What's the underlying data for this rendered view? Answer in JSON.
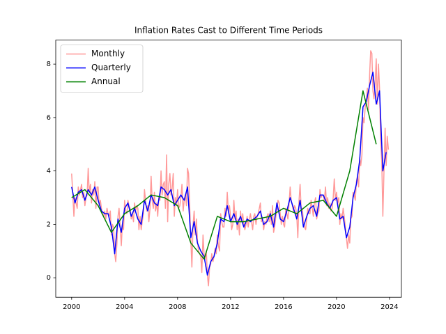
{
  "chart_data": {
    "type": "line",
    "title": "Inflation Rates Cast to Different Time Periods",
    "xlim": [
      1998.8,
      2024.9
    ],
    "xticks": [
      2000,
      2004,
      2008,
      2012,
      2016,
      2020,
      2024
    ],
    "ylim": [
      -0.73,
      8.9
    ],
    "yticks": [
      0,
      2,
      4,
      6,
      8
    ],
    "legend": "upper left",
    "series": [
      {
        "name": "Monthly",
        "color": "#ff9999",
        "x": [
          2000,
          2000.08,
          2000.17,
          2000.25,
          2000.33,
          2000.42,
          2000.5,
          2000.58,
          2000.67,
          2000.75,
          2000.83,
          2000.92,
          2001,
          2001.08,
          2001.17,
          2001.25,
          2001.33,
          2001.42,
          2001.5,
          2001.58,
          2001.67,
          2001.75,
          2001.83,
          2001.92,
          2002,
          2002.08,
          2002.17,
          2002.25,
          2002.33,
          2002.42,
          2002.5,
          2002.58,
          2002.67,
          2002.75,
          2002.83,
          2002.92,
          2003,
          2003.08,
          2003.17,
          2003.25,
          2003.33,
          2003.42,
          2003.5,
          2003.58,
          2003.67,
          2003.75,
          2003.83,
          2003.92,
          2004,
          2004.08,
          2004.17,
          2004.25,
          2004.33,
          2004.42,
          2004.5,
          2004.58,
          2004.67,
          2004.75,
          2004.83,
          2004.92,
          2005,
          2005.08,
          2005.17,
          2005.25,
          2005.33,
          2005.42,
          2005.5,
          2005.58,
          2005.67,
          2005.75,
          2005.83,
          2005.92,
          2006,
          2006.08,
          2006.17,
          2006.25,
          2006.33,
          2006.42,
          2006.5,
          2006.58,
          2006.67,
          2006.75,
          2006.83,
          2006.92,
          2007,
          2007.08,
          2007.17,
          2007.25,
          2007.33,
          2007.42,
          2007.5,
          2007.58,
          2007.67,
          2007.75,
          2007.83,
          2007.92,
          2008,
          2008.08,
          2008.17,
          2008.25,
          2008.33,
          2008.42,
          2008.5,
          2008.58,
          2008.67,
          2008.75,
          2008.83,
          2008.92,
          2009,
          2009.08,
          2009.17,
          2009.25,
          2009.33,
          2009.42,
          2009.5,
          2009.58,
          2009.67,
          2009.75,
          2009.83,
          2009.92,
          2010,
          2010.08,
          2010.17,
          2010.25,
          2010.33,
          2010.42,
          2010.5,
          2010.58,
          2010.67,
          2010.75,
          2010.83,
          2010.92,
          2011,
          2011.08,
          2011.17,
          2011.25,
          2011.33,
          2011.42,
          2011.5,
          2011.58,
          2011.67,
          2011.75,
          2011.83,
          2011.92,
          2012,
          2012.08,
          2012.17,
          2012.25,
          2012.33,
          2012.42,
          2012.5,
          2012.58,
          2012.67,
          2012.75,
          2012.83,
          2012.92,
          2013,
          2013.08,
          2013.17,
          2013.25,
          2013.33,
          2013.42,
          2013.5,
          2013.58,
          2013.67,
          2013.75,
          2013.83,
          2013.92,
          2014,
          2014.08,
          2014.17,
          2014.25,
          2014.33,
          2014.42,
          2014.5,
          2014.58,
          2014.67,
          2014.75,
          2014.83,
          2014.92,
          2015,
          2015.08,
          2015.17,
          2015.25,
          2015.33,
          2015.42,
          2015.5,
          2015.58,
          2015.67,
          2015.75,
          2015.83,
          2015.92,
          2016,
          2016.08,
          2016.17,
          2016.25,
          2016.33,
          2016.42,
          2016.5,
          2016.58,
          2016.67,
          2016.75,
          2016.83,
          2016.92,
          2017,
          2017.08,
          2017.17,
          2017.25,
          2017.33,
          2017.42,
          2017.5,
          2017.58,
          2017.67,
          2017.75,
          2017.83,
          2017.92,
          2018,
          2018.08,
          2018.17,
          2018.25,
          2018.33,
          2018.42,
          2018.5,
          2018.58,
          2018.67,
          2018.75,
          2018.83,
          2018.92,
          2019,
          2019.08,
          2019.17,
          2019.25,
          2019.33,
          2019.42,
          2019.5,
          2019.58,
          2019.67,
          2019.75,
          2019.83,
          2019.92,
          2020,
          2020.08,
          2020.17,
          2020.25,
          2020.33,
          2020.42,
          2020.5,
          2020.58,
          2020.67,
          2020.75,
          2020.83,
          2020.92,
          2021,
          2021.08,
          2021.17,
          2021.25,
          2021.33,
          2021.42,
          2021.5,
          2021.58,
          2021.67,
          2021.75,
          2021.83,
          2021.92,
          2022,
          2022.08,
          2022.17,
          2022.25,
          2022.33,
          2022.42,
          2022.5,
          2022.58,
          2022.67,
          2022.75,
          2022.83,
          2022.92,
          2023,
          2023.08,
          2023.17,
          2023.25,
          2023.33,
          2023.42,
          2023.5,
          2023.58,
          2023.67,
          2023.75,
          2023.83,
          2023.92
        ],
        "values": [
          3.9,
          3.2,
          2.3,
          3.0,
          2.8,
          2.6,
          3.4,
          3.1,
          3.3,
          3.5,
          3.0,
          3.2,
          2.7,
          3.0,
          3.1,
          4.1,
          3.2,
          3.5,
          2.8,
          3.3,
          3.1,
          3.6,
          2.6,
          3.4,
          3.4,
          2.7,
          2.9,
          2.6,
          2.4,
          2.3,
          2.5,
          2.2,
          2.6,
          2.4,
          2.3,
          2.5,
          1.6,
          2.0,
          1.9,
          0.9,
          0.6,
          1.3,
          2.3,
          2.6,
          1.9,
          1.2,
          2.0,
          1.8,
          2.9,
          2.5,
          2.4,
          2.9,
          2.7,
          2.6,
          2.2,
          2.4,
          2.1,
          2.8,
          2.5,
          2.7,
          2.6,
          1.8,
          2.3,
          1.8,
          2.1,
          2.4,
          3.3,
          2.9,
          2.5,
          2.7,
          2.1,
          2.6,
          3.8,
          2.9,
          2.6,
          3.2,
          2.5,
          2.8,
          2.3,
          3.0,
          2.9,
          4.0,
          3.1,
          3.5,
          3.6,
          2.6,
          4.6,
          2.1,
          3.5,
          3.9,
          3.1,
          3.3,
          3.9,
          2.3,
          3.0,
          2.7,
          3.3,
          2.6,
          2.7,
          3.0,
          3.5,
          2.5,
          2.9,
          3.1,
          2.7,
          4.1,
          3.9,
          2.6,
          1.4,
          0.4,
          2.0,
          2.5,
          1.6,
          2.2,
          1.4,
          1.0,
          0.9,
          0.8,
          0.2,
          1.6,
          0.9,
          0.7,
          1.0,
          0.1,
          -0.3,
          0.4,
          0.5,
          0.9,
          0.6,
          0.8,
          1.1,
          0.9,
          1.6,
          1.2,
          1.0,
          2.4,
          2.1,
          1.9,
          1.9,
          2.6,
          2.3,
          3.2,
          2.5,
          2.7,
          2.3,
          1.8,
          2.0,
          2.9,
          2.2,
          2.5,
          1.8,
          2.2,
          1.6,
          2.5,
          2.1,
          2.4,
          2.0,
          1.8,
          2.0,
          2.3,
          1.9,
          2.2,
          2.4,
          2.1,
          1.8,
          2.3,
          2.4,
          2.0,
          2.3,
          2.4,
          2.6,
          2.8,
          2.1,
          2.2,
          1.8,
          2.1,
          2.0,
          2.3,
          2.4,
          2.1,
          2.5,
          2.0,
          2.7,
          1.7,
          1.9,
          2.3,
          2.5,
          2.9,
          2.8,
          2.4,
          2.0,
          2.3,
          2.0,
          1.9,
          2.6,
          2.4,
          2.2,
          2.8,
          3.4,
          2.9,
          2.7,
          2.5,
          2.7,
          2.6,
          2.3,
          1.5,
          2.9,
          3.5,
          2.6,
          2.6,
          2.1,
          1.9,
          1.8,
          2.2,
          2.6,
          2.4,
          2.4,
          2.9,
          2.6,
          2.3,
          2.8,
          3.0,
          2.2,
          2.4,
          2.5,
          3.3,
          3.0,
          3.1,
          3.1,
          2.9,
          3.4,
          2.7,
          3.0,
          2.6,
          2.8,
          2.5,
          2.6,
          3.0,
          3.7,
          2.9,
          3.2,
          2.8,
          3.0,
          2.0,
          2.4,
          2.2,
          2.6,
          2.3,
          1.9,
          1.5,
          1.1,
          1.6,
          1.3,
          2.2,
          2.3,
          3.2,
          3.1,
          2.9,
          3.6,
          3.8,
          3.4,
          4.5,
          4.2,
          4.6,
          6.0,
          5.8,
          6.4,
          6.6,
          7.1,
          6.3,
          7.6,
          8.5,
          8.4,
          7.0,
          6.7,
          7.3,
          8.2,
          6.5,
          8.0,
          7.1,
          5.2,
          4.3,
          2.3,
          3.9,
          5.6,
          4.2,
          5.3,
          4.8
        ]
      },
      {
        "name": "Quarterly",
        "color": "#0000ff",
        "x": [
          2000,
          2000.25,
          2000.5,
          2000.75,
          2001,
          2001.25,
          2001.5,
          2001.75,
          2002,
          2002.25,
          2002.5,
          2002.75,
          2003,
          2003.25,
          2003.5,
          2003.75,
          2004,
          2004.25,
          2004.5,
          2004.75,
          2005,
          2005.25,
          2005.5,
          2005.75,
          2006,
          2006.25,
          2006.5,
          2006.75,
          2007,
          2007.25,
          2007.5,
          2007.75,
          2008,
          2008.25,
          2008.5,
          2008.75,
          2009,
          2009.25,
          2009.5,
          2009.75,
          2010,
          2010.25,
          2010.5,
          2010.75,
          2011,
          2011.25,
          2011.5,
          2011.75,
          2012,
          2012.25,
          2012.5,
          2012.75,
          2013,
          2013.25,
          2013.5,
          2013.75,
          2014,
          2014.25,
          2014.5,
          2014.75,
          2015,
          2015.25,
          2015.5,
          2015.75,
          2016,
          2016.25,
          2016.5,
          2016.75,
          2017,
          2017.25,
          2017.5,
          2017.75,
          2018,
          2018.25,
          2018.5,
          2018.75,
          2019,
          2019.25,
          2019.5,
          2019.75,
          2020,
          2020.25,
          2020.5,
          2020.75,
          2021,
          2021.25,
          2021.5,
          2021.75,
          2022,
          2022.25,
          2022.5,
          2022.75,
          2023,
          2023.25,
          2023.5,
          2023.75
        ],
        "values": [
          3.4,
          2.8,
          3.2,
          3.3,
          2.9,
          3.3,
          3.1,
          3.4,
          2.9,
          2.5,
          2.4,
          2.4,
          1.9,
          0.9,
          2.2,
          1.7,
          2.6,
          2.8,
          2.3,
          2.6,
          2.2,
          2.0,
          2.9,
          2.5,
          3.1,
          2.8,
          2.7,
          3.4,
          3.3,
          3.1,
          3.3,
          2.7,
          2.9,
          3.1,
          2.9,
          3.4,
          1.5,
          2.1,
          1.3,
          1.0,
          0.8,
          0.1,
          0.6,
          0.8,
          1.3,
          2.2,
          2.1,
          2.7,
          2.1,
          2.4,
          2.0,
          2.3,
          1.9,
          2.2,
          2.1,
          2.2,
          2.3,
          2.5,
          2.0,
          2.1,
          2.4,
          1.9,
          2.8,
          2.2,
          2.1,
          2.5,
          3.0,
          2.6,
          2.2,
          2.9,
          1.9,
          2.3,
          2.6,
          2.7,
          2.3,
          3.1,
          3.1,
          2.8,
          2.6,
          2.9,
          3.0,
          2.2,
          2.3,
          1.5,
          1.9,
          3.0,
          3.5,
          4.4,
          6.4,
          6.6,
          7.2,
          7.7,
          6.5,
          7.0,
          4.0,
          4.7
        ]
      },
      {
        "name": "Annual",
        "color": "#008000",
        "x": [
          2000,
          2001,
          2002,
          2003,
          2004,
          2005,
          2006,
          2007,
          2008,
          2009,
          2010,
          2011,
          2012,
          2013,
          2014,
          2015,
          2016,
          2017,
          2018,
          2019,
          2020,
          2021,
          2022,
          2023
        ],
        "values": [
          3.0,
          3.3,
          2.7,
          1.7,
          2.4,
          2.7,
          3.1,
          3.0,
          2.7,
          1.3,
          0.7,
          2.3,
          2.1,
          2.1,
          2.2,
          2.3,
          2.6,
          2.4,
          2.8,
          2.9,
          2.3,
          4.0,
          7.0,
          5.0
        ]
      }
    ]
  }
}
